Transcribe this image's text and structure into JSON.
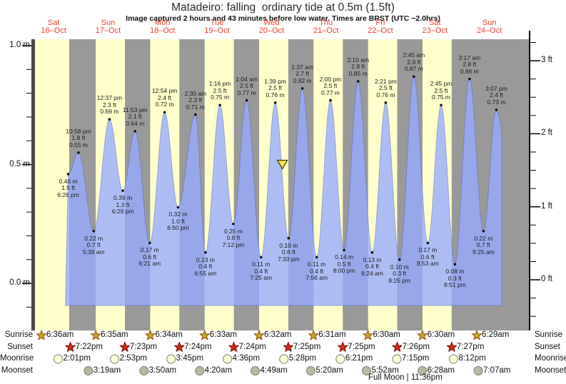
{
  "title": "Matadeiro: falling  ordinary tide at 0.5m (1.5ft)",
  "subtitle": "Image captured 2 hours and 43 minutes before low water. Times are BRST (UTC −2.0hrs)",
  "days": [
    {
      "dow": "Sat",
      "date": "16–Oct"
    },
    {
      "dow": "Sun",
      "date": "17–Oct"
    },
    {
      "dow": "Mon",
      "date": "18–Oct"
    },
    {
      "dow": "Tue",
      "date": "19–Oct"
    },
    {
      "dow": "Wed",
      "date": "20–Oct"
    },
    {
      "dow": "Thu",
      "date": "21–Oct"
    },
    {
      "dow": "Fri",
      "date": "22–Oct"
    },
    {
      "dow": "Sat",
      "date": "23–Oct"
    },
    {
      "dow": "Sun",
      "date": "24–Oct"
    }
  ],
  "axes": {
    "left": [
      {
        "label": "1.0 m",
        "value": 1.0
      },
      {
        "label": "0.5 m",
        "value": 0.5
      },
      {
        "label": "0.0 m",
        "value": 0.0
      }
    ],
    "right": [
      {
        "label": "3 ft",
        "value": 3
      },
      {
        "label": "2 ft",
        "value": 2
      },
      {
        "label": "1 ft",
        "value": 1
      },
      {
        "label": "0 ft",
        "value": 0
      }
    ]
  },
  "chart_data": {
    "type": "area",
    "title": "Matadeiro: falling  ordinary tide at 0.5m (1.5ft)",
    "ylabel_left": "meters",
    "ylabel_right": "feet",
    "ylim_m": [
      -0.2,
      1.03
    ],
    "curve_start_d": 0.715,
    "curve_end_d": 8.73,
    "fill_bottom_m": -0.093,
    "virtual_end_low": {
      "d": 9.0,
      "val_m": 0.1
    },
    "now_marker": {
      "d": 4.7,
      "val_m": 0.5,
      "shape": "triangle-down"
    },
    "tide_events": [
      {
        "type": "low",
        "day": 0,
        "time": "6:26 pm",
        "ft": "1.5 ft",
        "m": "0.46 m",
        "val_m": 0.46,
        "d": 0.7681
      },
      {
        "type": "high",
        "day": 0,
        "time": "10:58 pm",
        "ft": "1.8 ft",
        "m": "0.55 m",
        "val_m": 0.55,
        "d": 0.9569
      },
      {
        "type": "low",
        "day": 1,
        "time": "5:39 am",
        "ft": "0.7 ft",
        "m": "0.22 m",
        "val_m": 0.22,
        "d": 1.2354
      },
      {
        "type": "high",
        "day": 1,
        "time": "12:37 pm",
        "ft": "2.3 ft",
        "m": "0.69 m",
        "val_m": 0.69,
        "d": 1.5257
      },
      {
        "type": "low",
        "day": 1,
        "time": "6:29 pm",
        "ft": "1.3 ft",
        "m": "0.39 m",
        "val_m": 0.39,
        "d": 1.7701
      },
      {
        "type": "high",
        "day": 1,
        "time": "11:53 pm",
        "ft": "2.1 ft",
        "m": "0.64 m",
        "val_m": 0.64,
        "d": 1.9951
      },
      {
        "type": "low",
        "day": 2,
        "time": "6:21 am",
        "ft": "0.6 ft",
        "m": "0.17 m",
        "val_m": 0.17,
        "d": 2.2646
      },
      {
        "type": "high",
        "day": 2,
        "time": "12:54 pm",
        "ft": "2.4 ft",
        "m": "0.72 m",
        "val_m": 0.72,
        "d": 2.5375
      },
      {
        "type": "low",
        "day": 2,
        "time": "6:50 pm",
        "ft": "1.0 ft",
        "m": "0.32 m",
        "val_m": 0.32,
        "d": 2.7847
      },
      {
        "type": "high",
        "day": 3,
        "time": "2:30 am",
        "ft": "2.3 ft",
        "m": "0.71 m",
        "val_m": 0.71,
        "d": 3.1042
      },
      {
        "type": "low",
        "day": 3,
        "time": "6:55 am",
        "ft": "0.4 ft",
        "m": "0.13 m",
        "val_m": 0.13,
        "d": 3.2882
      },
      {
        "type": "high",
        "day": 3,
        "time": "1:16 pm",
        "ft": "2.5 ft",
        "m": "0.75 m",
        "val_m": 0.75,
        "d": 3.5528
      },
      {
        "type": "low",
        "day": 3,
        "time": "7:12 pm",
        "ft": "0.8 ft",
        "m": "0.25 m",
        "val_m": 0.25,
        "d": 3.8
      },
      {
        "type": "high",
        "day": 4,
        "time": "1:04 am",
        "ft": "2.5 ft",
        "m": "0.77 m",
        "val_m": 0.77,
        "d": 4.0444
      },
      {
        "type": "low",
        "day": 4,
        "time": "7:25 am",
        "ft": "0.4 ft",
        "m": "0.11 m",
        "val_m": 0.11,
        "d": 4.309
      },
      {
        "type": "high",
        "day": 4,
        "time": "1:39 pm",
        "ft": "2.5 ft",
        "m": "0.76 m",
        "val_m": 0.76,
        "d": 4.5688
      },
      {
        "type": "low",
        "day": 4,
        "time": "7:33 pm",
        "ft": "0.6 ft",
        "m": "0.19 m",
        "val_m": 0.19,
        "d": 4.8146
      },
      {
        "type": "high",
        "day": 5,
        "time": "1:37 am",
        "ft": "2.7 ft",
        "m": "0.82 m",
        "val_m": 0.82,
        "d": 5.0674
      },
      {
        "type": "low",
        "day": 5,
        "time": "7:56 am",
        "ft": "0.4 ft",
        "m": "0.11 m",
        "val_m": 0.11,
        "d": 5.3306
      },
      {
        "type": "high",
        "day": 5,
        "time": "2:00 pm",
        "ft": "2.5 ft",
        "m": "0.77 m",
        "val_m": 0.77,
        "d": 5.5833
      },
      {
        "type": "low",
        "day": 5,
        "time": "8:00 pm",
        "ft": "0.5 ft",
        "m": "0.14 m",
        "val_m": 0.14,
        "d": 5.8333
      },
      {
        "type": "high",
        "day": 6,
        "time": "2:10 am",
        "ft": "2.8 ft",
        "m": "0.85 m",
        "val_m": 0.85,
        "d": 6.0903
      },
      {
        "type": "low",
        "day": 6,
        "time": "8:24 am",
        "ft": "0.4 ft",
        "m": "0.13 m",
        "val_m": 0.13,
        "d": 6.35
      },
      {
        "type": "high",
        "day": 6,
        "time": "2:21 pm",
        "ft": "2.5 ft",
        "m": "0.76 m",
        "val_m": 0.76,
        "d": 6.5979
      },
      {
        "type": "low",
        "day": 6,
        "time": "8:25 pm",
        "ft": "0.3 ft",
        "m": "0.10 m",
        "val_m": 0.1,
        "d": 6.8507
      },
      {
        "type": "high",
        "day": 7,
        "time": "2:45 am",
        "ft": "2.9 ft",
        "m": "0.87 m",
        "val_m": 0.87,
        "d": 7.1146
      },
      {
        "type": "low",
        "day": 7,
        "time": "8:53 am",
        "ft": "0.6 ft",
        "m": "0.17 m",
        "val_m": 0.17,
        "d": 7.3701
      },
      {
        "type": "high",
        "day": 7,
        "time": "2:45 pm",
        "ft": "2.5 ft",
        "m": "0.75 m",
        "val_m": 0.75,
        "d": 7.6146
      },
      {
        "type": "low",
        "day": 7,
        "time": "8:51 pm",
        "ft": "0.3 ft",
        "m": "0.08 m",
        "val_m": 0.08,
        "d": 7.8688
      },
      {
        "type": "high",
        "day": 8,
        "time": "3:17 am",
        "ft": "2.8 ft",
        "m": "0.86 m",
        "val_m": 0.86,
        "d": 8.1368
      },
      {
        "type": "low",
        "day": 8,
        "time": "9:25 am",
        "ft": "0.7 ft",
        "m": "0.22 m",
        "val_m": 0.22,
        "d": 8.3924
      },
      {
        "type": "high",
        "day": 8,
        "time": "3:07 pm",
        "ft": "2.4 ft",
        "m": "0.73 m",
        "val_m": 0.73,
        "d": 8.6299
      }
    ]
  },
  "almanac": {
    "rows": [
      {
        "id": "sunrise",
        "label": "Sunrise",
        "icon": "sunrise-star-icon",
        "entries": [
          {
            "time": "6:36am",
            "d": 0.275
          },
          {
            "time": "6:35am",
            "d": 1.2743
          },
          {
            "time": "6:34am",
            "d": 2.2736
          },
          {
            "time": "6:33am",
            "d": 3.2729
          },
          {
            "time": "6:32am",
            "d": 4.2722
          },
          {
            "time": "6:31am",
            "d": 5.2715
          },
          {
            "time": "6:30am",
            "d": 6.2708
          },
          {
            "time": "6:30am",
            "d": 7.2708
          },
          {
            "time": "6:29am",
            "d": 8.2701
          }
        ]
      },
      {
        "id": "sunset",
        "label": "Sunset",
        "icon": "sunset-star-icon",
        "entries": [
          {
            "time": "7:22pm",
            "d": 0.8069
          },
          {
            "time": "7:23pm",
            "d": 1.8076
          },
          {
            "time": "7:24pm",
            "d": 2.8083
          },
          {
            "time": "7:24pm",
            "d": 3.8083
          },
          {
            "time": "7:25pm",
            "d": 4.809
          },
          {
            "time": "7:25pm",
            "d": 5.809
          },
          {
            "time": "7:26pm",
            "d": 6.8097
          },
          {
            "time": "7:27pm",
            "d": 7.8104
          }
        ]
      },
      {
        "id": "moonrise",
        "label": "Moonrise",
        "icon": "moonrise-circle-icon",
        "entries": [
          {
            "time": "2:01pm",
            "d": 0.584
          },
          {
            "time": "2:53pm",
            "d": 1.6201
          },
          {
            "time": "3:45pm",
            "d": 2.6563
          },
          {
            "time": "4:36pm",
            "d": 3.6917
          },
          {
            "time": "5:28pm",
            "d": 4.7278
          },
          {
            "time": "6:21pm",
            "d": 5.7646
          },
          {
            "time": "7:15pm",
            "d": 6.8021
          },
          {
            "time": "8:12pm",
            "d": 7.8417
          }
        ]
      },
      {
        "id": "moonset",
        "label": "Moonset",
        "icon": "moonset-circle-icon",
        "entries": [
          {
            "time": "3:19am",
            "d": 1.1382
          },
          {
            "time": "3:50am",
            "d": 2.1597
          },
          {
            "time": "4:20am",
            "d": 3.1806
          },
          {
            "time": "4:49am",
            "d": 4.2007
          },
          {
            "time": "5:20am",
            "d": 5.2222
          },
          {
            "time": "5:52am",
            "d": 6.2444
          },
          {
            "time": "6:28am",
            "d": 7.2694
          },
          {
            "time": "7:07am",
            "d": 8.2965
          }
        ]
      }
    ],
    "footer": "Full Moon | 11:36pm"
  },
  "colors": {
    "day_band": "#ffffcc",
    "night_band": "#999999",
    "tide_fill": "rgba(150,170,255,0.78)",
    "tide_edge": "rgba(80,100,190,0.45)",
    "axis": "#000000",
    "left_spine": "#4a4a4a",
    "day_label": "#f43b29",
    "event_text": "#1c1c1c",
    "dot": "#111111",
    "marker_fill": "#f2e14a",
    "marker_edge": "#333300",
    "sunrise_star": "#bcae2c",
    "sunrise_star_edge": "#a05f1e",
    "sunset_star": "#d7291c",
    "sunset_star_edge": "#8a150c",
    "moonrise_fill": "#ffffd6",
    "moonrise_edge": "#909090",
    "moonset_fill": "#b8b8a0",
    "moonset_edge": "#8a8a8a"
  }
}
